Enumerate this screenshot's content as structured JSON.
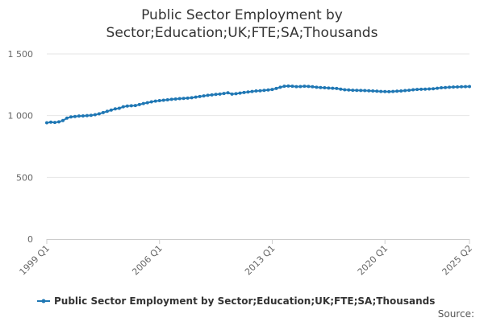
{
  "chart_data": {
    "type": "line",
    "title_lines": [
      "Public Sector Employment by",
      "Sector;Education;UK;FTE;SA;Thousands"
    ],
    "xlabel": "",
    "ylabel": "",
    "ylim": [
      0,
      1500
    ],
    "yticks": [
      0,
      500,
      1000,
      1500
    ],
    "ytick_labels": [
      "0",
      "500",
      "1 000",
      "1 500"
    ],
    "xtick_labels": [
      "1999 Q1",
      "2006 Q1",
      "2013 Q1",
      "2020 Q1",
      "2025 Q2"
    ],
    "grid": true,
    "legend_position": "bottom",
    "series_color": "#1f77b4",
    "series": [
      {
        "name": "Public Sector Employment by Sector;Education;UK;FTE;SA;Thousands",
        "x": [
          "1999 Q1",
          "1999 Q2",
          "1999 Q3",
          "1999 Q4",
          "2000 Q1",
          "2000 Q2",
          "2000 Q3",
          "2000 Q4",
          "2001 Q1",
          "2001 Q2",
          "2001 Q3",
          "2001 Q4",
          "2002 Q1",
          "2002 Q2",
          "2002 Q3",
          "2002 Q4",
          "2003 Q1",
          "2003 Q2",
          "2003 Q3",
          "2003 Q4",
          "2004 Q1",
          "2004 Q2",
          "2004 Q3",
          "2004 Q4",
          "2005 Q1",
          "2005 Q2",
          "2005 Q3",
          "2005 Q4",
          "2006 Q1",
          "2006 Q2",
          "2006 Q3",
          "2006 Q4",
          "2007 Q1",
          "2007 Q2",
          "2007 Q3",
          "2007 Q4",
          "2008 Q1",
          "2008 Q2",
          "2008 Q3",
          "2008 Q4",
          "2009 Q1",
          "2009 Q2",
          "2009 Q3",
          "2009 Q4",
          "2010 Q1",
          "2010 Q2",
          "2010 Q3",
          "2010 Q4",
          "2011 Q1",
          "2011 Q2",
          "2011 Q3",
          "2011 Q4",
          "2012 Q1",
          "2012 Q2",
          "2012 Q3",
          "2012 Q4",
          "2013 Q1",
          "2013 Q2",
          "2013 Q3",
          "2013 Q4",
          "2014 Q1",
          "2014 Q2",
          "2014 Q3",
          "2014 Q4",
          "2015 Q1",
          "2015 Q2",
          "2015 Q3",
          "2015 Q4",
          "2016 Q1",
          "2016 Q2",
          "2016 Q3",
          "2016 Q4",
          "2017 Q1",
          "2017 Q2",
          "2017 Q3",
          "2017 Q4",
          "2018 Q1",
          "2018 Q2",
          "2018 Q3",
          "2018 Q4",
          "2019 Q1",
          "2019 Q2",
          "2019 Q3",
          "2019 Q4",
          "2020 Q1",
          "2020 Q2",
          "2020 Q3",
          "2020 Q4",
          "2021 Q1",
          "2021 Q2",
          "2021 Q3",
          "2021 Q4",
          "2022 Q1",
          "2022 Q2",
          "2022 Q3",
          "2022 Q4",
          "2023 Q1",
          "2023 Q2",
          "2023 Q3",
          "2023 Q4",
          "2024 Q1",
          "2024 Q2",
          "2024 Q3",
          "2024 Q4",
          "2025 Q1",
          "2025 Q2"
        ],
        "values": [
          942,
          947,
          945,
          950,
          960,
          980,
          990,
          993,
          997,
          998,
          1000,
          1003,
          1008,
          1015,
          1025,
          1035,
          1045,
          1055,
          1060,
          1072,
          1078,
          1080,
          1082,
          1090,
          1098,
          1105,
          1112,
          1118,
          1122,
          1125,
          1128,
          1132,
          1135,
          1138,
          1140,
          1142,
          1145,
          1150,
          1155,
          1160,
          1165,
          1168,
          1172,
          1175,
          1180,
          1185,
          1175,
          1178,
          1183,
          1188,
          1192,
          1196,
          1200,
          1202,
          1205,
          1208,
          1212,
          1220,
          1230,
          1238,
          1240,
          1238,
          1235,
          1236,
          1238,
          1237,
          1234,
          1230,
          1228,
          1226,
          1224,
          1222,
          1220,
          1215,
          1210,
          1208,
          1206,
          1205,
          1204,
          1203,
          1202,
          1200,
          1198,
          1196,
          1195,
          1194,
          1196,
          1198,
          1200,
          1203,
          1206,
          1210,
          1212,
          1214,
          1215,
          1216,
          1218,
          1222,
          1226,
          1228,
          1230,
          1232,
          1233,
          1234,
          1235,
          1236
        ]
      }
    ]
  },
  "source_label": "Source:"
}
